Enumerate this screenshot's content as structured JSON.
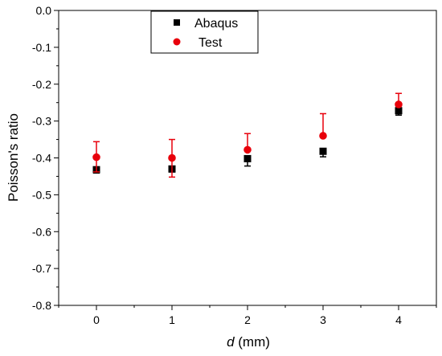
{
  "chart_data": {
    "type": "scatter",
    "xlabel_italic": "d",
    "xlabel_rest": " (mm)",
    "ylabel": "Poisson's ratio",
    "xlim": [
      -0.5,
      4.5
    ],
    "ylim": [
      -0.8,
      0.0
    ],
    "xticks": [
      0,
      1,
      2,
      3,
      4
    ],
    "xtick_labels": [
      "0",
      "1",
      "2",
      "3",
      "4"
    ],
    "yticks": [
      0.0,
      -0.1,
      -0.2,
      -0.3,
      -0.4,
      -0.5,
      -0.6,
      -0.7,
      -0.8
    ],
    "ytick_labels": [
      "0.0",
      "-0.1",
      "-0.2",
      "-0.3",
      "-0.4",
      "-0.5",
      "-0.6",
      "-0.7",
      "-0.8"
    ],
    "grid": false,
    "legend_position": "top-center",
    "series": [
      {
        "name": "Abaqus",
        "marker": "square",
        "color": "#000000",
        "x": [
          0,
          1,
          2,
          3,
          4
        ],
        "y": [
          -0.432,
          -0.43,
          -0.402,
          -0.382,
          -0.272
        ],
        "err_low": [
          0.009,
          0.008,
          0.02,
          0.015,
          0.012
        ],
        "err_high": [
          0.0,
          0.0,
          0.0,
          0.0,
          0.0
        ]
      },
      {
        "name": "Test",
        "marker": "circle",
        "color": "#e8000b",
        "x": [
          0,
          1,
          2,
          3,
          4
        ],
        "y": [
          -0.398,
          -0.4,
          -0.378,
          -0.34,
          -0.255
        ],
        "err_low": [
          0.04,
          0.052,
          0.0,
          0.0,
          0.0
        ],
        "err_high": [
          0.042,
          0.05,
          0.044,
          0.06,
          0.03
        ]
      }
    ]
  }
}
